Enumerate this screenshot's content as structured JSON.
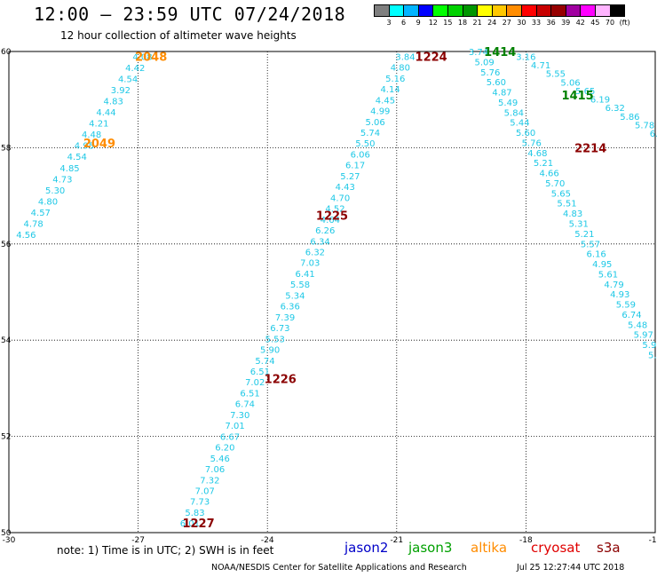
{
  "header": {
    "title": "12:00 — 23:59 UTC 07/24/2018",
    "subtitle": "12 hour collection of altimeter wave heights"
  },
  "colorbar": {
    "colors": [
      "#7f7f7f",
      "#00ffff",
      "#00b4ff",
      "#0000ff",
      "#00ff00",
      "#00d200",
      "#009600",
      "#ffff00",
      "#ffc800",
      "#ff8c00",
      "#ff0000",
      "#c80000",
      "#960000",
      "#a000a0",
      "#ff00ff",
      "#ffb4ff",
      "#000000"
    ],
    "labels": [
      "3",
      "6",
      "9",
      "12",
      "15",
      "18",
      "21",
      "24",
      "27",
      "30",
      "33",
      "36",
      "39",
      "42",
      "45",
      "70",
      "(ft)"
    ]
  },
  "map": {
    "xlim": [
      -30,
      -15
    ],
    "ylim": [
      50,
      60
    ],
    "x_ticks": [
      "-30",
      "-27",
      "-24",
      "-21",
      "-18",
      "-15"
    ],
    "y_ticks": [
      "50",
      "52",
      "54",
      "56",
      "58",
      "60"
    ],
    "swh_color": "#1ec8e6",
    "track_labels": [
      {
        "text": "2048",
        "lon": -26.7,
        "lat": 59.9,
        "color": "#ff8c00"
      },
      {
        "text": "2049",
        "lon": -27.9,
        "lat": 58.1,
        "color": "#ff8c00"
      },
      {
        "text": "1224",
        "lon": -20.2,
        "lat": 59.9,
        "color": "#8b0000"
      },
      {
        "text": "1225",
        "lon": -22.5,
        "lat": 56.6,
        "color": "#8b0000"
      },
      {
        "text": "1226",
        "lon": -23.7,
        "lat": 53.2,
        "color": "#8b0000"
      },
      {
        "text": "1227",
        "lon": -25.6,
        "lat": 50.2,
        "color": "#8b0000"
      },
      {
        "text": "1414",
        "lon": -18.6,
        "lat": 60.0,
        "color": "#008000"
      },
      {
        "text": "1415",
        "lon": -16.8,
        "lat": 59.1,
        "color": "#008000"
      },
      {
        "text": "2214",
        "lon": -16.5,
        "lat": 58.0,
        "color": "#8b0000"
      }
    ],
    "tracks": [
      {
        "lon0": -26.9,
        "lat0": 59.9,
        "lon1": -29.6,
        "lat1": 56.2,
        "values": [
          "4.08",
          "4.42",
          "4.54",
          "3.92",
          "4.83",
          "4.44",
          "4.21",
          "4.48",
          "4.95",
          "4.54",
          "4.85",
          "4.73",
          "5.30",
          "4.80",
          "4.57",
          "4.78",
          "4.56"
        ]
      },
      {
        "lon0": -20.8,
        "lat0": 59.9,
        "lon1": -25.8,
        "lat1": 50.2,
        "values": [
          "3.84",
          "4.80",
          "5.16",
          "4.14",
          "4.45",
          "4.99",
          "5.06",
          "5.74",
          "5.50",
          "6.06",
          "6.17",
          "5.27",
          "4.43",
          "4.70",
          "4.52",
          "4.64",
          "6.26",
          "6.34",
          "6.32",
          "7.03",
          "6.41",
          "5.58",
          "5.34",
          "6.36",
          "7.39",
          "6.73",
          "5.53",
          "5.90",
          "5.74",
          "6.51",
          "7.02",
          "6.51",
          "6.74",
          "7.30",
          "7.01",
          "6.67",
          "6.20",
          "5.46",
          "7.06",
          "7.32",
          "7.07",
          "7.73",
          "5.83",
          "6.01"
        ]
      },
      {
        "lon0": -19.1,
        "lat0": 60.0,
        "lon1": -15.0,
        "lat1": 53.7,
        "values": [
          "3.74",
          "5.09",
          "5.76",
          "5.60",
          "4.87",
          "5.49",
          "5.84",
          "5.44",
          "5.60",
          "5.76",
          "4.68",
          "5.21",
          "4.66",
          "5.70",
          "5.65",
          "5.51",
          "4.83",
          "5.31",
          "5.21",
          "5.57",
          "6.16",
          "4.95",
          "5.61",
          "4.79",
          "4.93",
          "5.59",
          "6.74",
          "5.48",
          "5.97",
          "5.9",
          "5.8"
        ]
      },
      {
        "lon0": -18.0,
        "lat0": 59.9,
        "lon1": -14.9,
        "lat1": 58.3,
        "values": [
          "3.16",
          "4.71",
          "5.55",
          "5.06",
          "5.65",
          "6.19",
          "6.32",
          "5.86",
          "5.78",
          "6.37"
        ]
      }
    ]
  },
  "note": "note: 1) Time is in UTC; 2) SWH is in feet",
  "legend": [
    {
      "label": "jason2",
      "color": "#0000c8"
    },
    {
      "label": "jason3",
      "color": "#00a000"
    },
    {
      "label": "altika",
      "color": "#ff8c00"
    },
    {
      "label": "cryosat",
      "color": "#e00000"
    },
    {
      "label": "s3a",
      "color": "#8b0000"
    }
  ],
  "footer": "NOAA/NESDIS Center for Satellite Applications and Research",
  "footer_date": "Jul 25 12:27:44 UTC 2018"
}
